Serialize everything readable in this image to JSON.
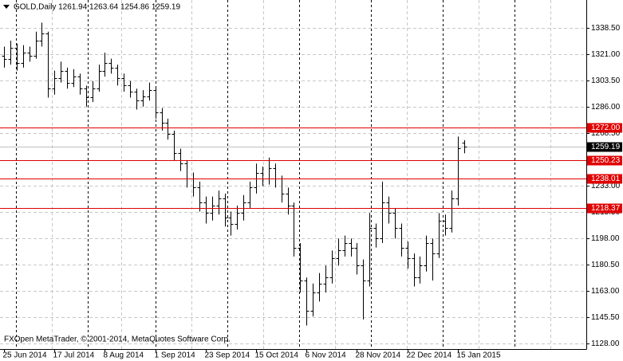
{
  "chart_data": {
    "type": "ohlc",
    "title": "GOLD,Daily  1261.94 1263.64 1254.86 1259.19",
    "footer": "FXOpen MetaTrader, © 2001-2014, MetaQuotes Software Corp.",
    "color": "#000000",
    "categories": [
      "25 Jun 2014",
      null,
      null,
      null,
      null,
      null,
      null,
      null,
      "17 Jul 2014",
      null,
      null,
      null,
      null,
      null,
      null,
      null,
      "8 Aug 2014",
      null,
      null,
      null,
      null,
      null,
      null,
      null,
      "1 Sep 2014",
      null,
      null,
      null,
      null,
      null,
      null,
      null,
      "23 Sep 2014",
      null,
      null,
      null,
      null,
      null,
      null,
      null,
      "15 Oct 2014",
      null,
      null,
      null,
      null,
      null,
      null,
      null,
      "6 Nov 2014",
      null,
      null,
      null,
      null,
      null,
      null,
      null,
      "28 Nov 2014",
      null,
      null,
      null,
      null,
      null,
      null,
      null,
      "22 Dec 2014",
      null,
      null,
      null,
      null,
      null,
      null,
      null,
      "15 Jan 2015",
      null
    ],
    "open": [
      1320,
      1318,
      1325,
      1315,
      1322,
      1320,
      1330,
      1335,
      1298,
      1305,
      1310,
      1302,
      1306,
      1298,
      1292,
      1298,
      1310,
      1315,
      1312,
      1305,
      1300,
      1296,
      1290,
      1293,
      1297,
      1282,
      1275,
      1268,
      1255,
      1248,
      1238,
      1232,
      1222,
      1215,
      1220,
      1225,
      1212,
      1208,
      1215,
      1222,
      1232,
      1242,
      1238,
      1245,
      1238,
      1228,
      1220,
      1192,
      1170,
      1150,
      1162,
      1168,
      1172,
      1185,
      1190,
      1195,
      1192,
      1180,
      1170,
      1205,
      1198,
      1222,
      1215,
      1205,
      1192,
      1185,
      1172,
      1180,
      1195,
      1188,
      1210,
      1205,
      1225,
      1261.94
    ],
    "high": [
      1326,
      1330,
      1328,
      1327,
      1326,
      1336,
      1342,
      1336,
      1310,
      1316,
      1312,
      1311,
      1308,
      1300,
      1303,
      1314,
      1322,
      1318,
      1314,
      1308,
      1303,
      1298,
      1297,
      1302,
      1299,
      1285,
      1278,
      1270,
      1258,
      1250,
      1242,
      1236,
      1226,
      1226,
      1230,
      1228,
      1216,
      1220,
      1227,
      1236,
      1248,
      1246,
      1252,
      1248,
      1240,
      1232,
      1222,
      1195,
      1172,
      1168,
      1175,
      1180,
      1190,
      1198,
      1200,
      1198,
      1195,
      1184,
      1215,
      1208,
      1236,
      1226,
      1218,
      1208,
      1196,
      1188,
      1186,
      1200,
      1198,
      1215,
      1214,
      1230,
      1266,
      1263.64
    ],
    "low": [
      1312,
      1314,
      1310,
      1312,
      1316,
      1318,
      1326,
      1292,
      1294,
      1302,
      1298,
      1299,
      1294,
      1286,
      1289,
      1296,
      1306,
      1308,
      1300,
      1296,
      1292,
      1284,
      1286,
      1290,
      1278,
      1270,
      1264,
      1250,
      1243,
      1232,
      1226,
      1216,
      1208,
      1210,
      1214,
      1206,
      1200,
      1204,
      1210,
      1218,
      1228,
      1233,
      1234,
      1232,
      1222,
      1214,
      1186,
      1162,
      1140,
      1146,
      1156,
      1162,
      1168,
      1180,
      1186,
      1186,
      1174,
      1144,
      1166,
      1192,
      1195,
      1208,
      1198,
      1186,
      1178,
      1166,
      1168,
      1176,
      1170,
      1185,
      1200,
      1202,
      1220,
      1254.86
    ],
    "close": [
      1318,
      1325,
      1315,
      1322,
      1320,
      1330,
      1335,
      1298,
      1305,
      1310,
      1302,
      1306,
      1298,
      1292,
      1298,
      1310,
      1315,
      1312,
      1305,
      1300,
      1296,
      1290,
      1293,
      1297,
      1282,
      1275,
      1268,
      1255,
      1248,
      1238,
      1232,
      1222,
      1215,
      1220,
      1225,
      1212,
      1208,
      1215,
      1222,
      1232,
      1242,
      1238,
      1245,
      1238,
      1228,
      1220,
      1192,
      1170,
      1150,
      1162,
      1168,
      1172,
      1185,
      1190,
      1195,
      1192,
      1180,
      1170,
      1205,
      1198,
      1222,
      1215,
      1205,
      1192,
      1185,
      1172,
      1180,
      1195,
      1188,
      1210,
      1205,
      1225,
      1258,
      1259.19
    ],
    "ylim": [
      1124.3,
      1357.1
    ],
    "yticks": [
      {
        "value": 1338.5,
        "label": "1338.50"
      },
      {
        "value": 1321,
        "label": "1321.00"
      },
      {
        "value": 1303.5,
        "label": "1303.50"
      },
      {
        "value": 1286,
        "label": "1286.00"
      },
      {
        "value": 1268.5,
        "label": "1268.50"
      },
      {
        "value": 1233,
        "label": "1233.00"
      },
      {
        "value": 1215.5,
        "label": "1215.50"
      },
      {
        "value": 1198,
        "label": "1198.00"
      },
      {
        "value": 1180.5,
        "label": "1180.50"
      },
      {
        "value": 1163,
        "label": "1163.00"
      },
      {
        "value": 1145.5,
        "label": "1145.50"
      },
      {
        "value": 1128,
        "label": "1128.00"
      }
    ],
    "grid": true,
    "hlines": [
      {
        "value": 1272,
        "label": "1272.00",
        "color": "#e00000"
      },
      {
        "value": 1250.23,
        "label": "1250.23",
        "color": "#e00000"
      },
      {
        "value": 1238.01,
        "label": "1238.01",
        "color": "#e00000"
      },
      {
        "value": 1218.37,
        "label": "1218.37",
        "color": "#e00000"
      }
    ],
    "price_line": {
      "value": 1259.19,
      "label": "1259.19",
      "color": "#000000"
    }
  }
}
